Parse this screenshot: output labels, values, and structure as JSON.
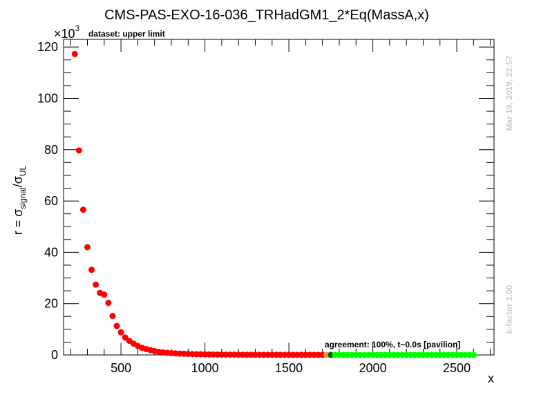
{
  "chart_data": {
    "type": "scatter",
    "title": "CMS-PAS-EXO-16-036_TRHadGM1_2*Eq(MassA,x)",
    "xlabel": "x",
    "ylabel_main": "r = σ",
    "ylabel_sub1": "signal",
    "ylabel_mid": "/σ",
    "ylabel_sub2": "UL",
    "y_multiplier": "×10",
    "y_multiplier_exp": "3",
    "legend_label": "dataset: upper limit",
    "annotation": "agreement: 100%, t~0.0s [pavilion]",
    "side_text_date": "Mar 19, 2019, 22:57",
    "side_text_kfactor": "k-factor 1.00",
    "xlim": [
      158,
      2722
    ],
    "ylim": [
      0,
      123
    ],
    "x_ticks": [
      500,
      1000,
      1500,
      2000,
      2500
    ],
    "x_tick_labels": [
      "500",
      "1000",
      "1500",
      "2000",
      "2500"
    ],
    "y_ticks": [
      0,
      20,
      40,
      60,
      80,
      100,
      120
    ],
    "y_tick_labels": [
      "0",
      "20",
      "40",
      "60",
      "80",
      "100",
      "120"
    ],
    "x_start": 225,
    "x_step": 25,
    "y_values": [
      117.3,
      79.7,
      56.6,
      42.0,
      33.2,
      27.4,
      24.2,
      23.5,
      20.3,
      15.2,
      11.3,
      8.8,
      6.8,
      5.5,
      4.4,
      3.5,
      2.8,
      2.3,
      1.9,
      1.5,
      1.2,
      1.0,
      0.85,
      0.72,
      0.62,
      0.53,
      0.46,
      0.4,
      0.35,
      0.3,
      0.26,
      0.23,
      0.2,
      0.18,
      0.16,
      0.14,
      0.12,
      0.11,
      0.1,
      0.09,
      0.08,
      0.07,
      0.065,
      0.06,
      0.055,
      0.05,
      0.046,
      0.042,
      0.039,
      0.036,
      0.033,
      0.03,
      0.028,
      0.026,
      0.024,
      0.022,
      0.021,
      0.02,
      0.019,
      0.018,
      0.017,
      0.016,
      0.015,
      0.015,
      0.015,
      0.015,
      0.015,
      0.015,
      0.015,
      0.015,
      0.015,
      0.015,
      0.012,
      0.012,
      0.012,
      0.012,
      0.012,
      0.012,
      0.012,
      0.012,
      0.012,
      0.012,
      0.01,
      0.01,
      0.01,
      0.01,
      0.01,
      0.01,
      0.01,
      0.01,
      0.01,
      0.01,
      0.008,
      0.008,
      0.008,
      0.008
    ],
    "point_status": [
      {
        "from_x": 225,
        "to_x": 1700,
        "color": "#ff0000"
      },
      {
        "from_x": 1725,
        "to_x": 1725,
        "color": "#f0a040"
      },
      {
        "from_x": 1750,
        "to_x": 1750,
        "color": "#006600"
      },
      {
        "from_x": 1775,
        "to_x": 2600,
        "color": "#00ff00"
      }
    ],
    "side_text_color": "#cccccc"
  }
}
